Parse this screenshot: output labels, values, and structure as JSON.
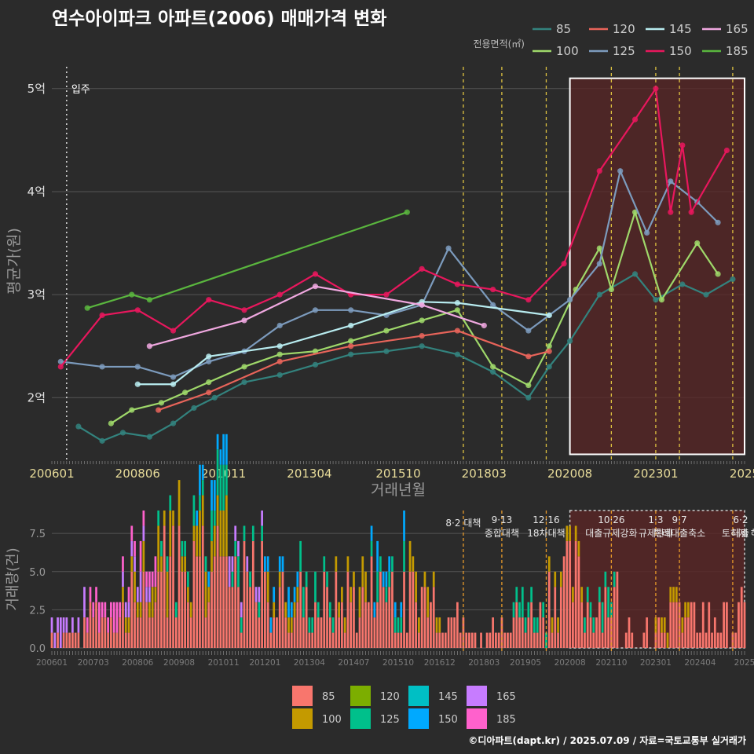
{
  "title": "연수아이파크 아파트(2006) 매매가격 변화",
  "footer": "©디아파트(dapt.kr) / 2025.07.09 / 자료=국토교통부 실거래가",
  "colors": {
    "background": "#2b2b2b",
    "grid": "#555555",
    "policy_line": "#e0c341",
    "highlight_fill": "#5a2626",
    "highlight_border": "#ffffff"
  },
  "chart_data": [
    {
      "type": "line",
      "title": "연수아이파크 아파트(2006) 매매가격 변화",
      "xlabel": "거래년월",
      "ylabel": "평균가(원)",
      "legend_title": "전용면적(㎡)",
      "legend_position": "top-right",
      "grid": true,
      "x_ticks": [
        "200601",
        "200806",
        "201011",
        "201304",
        "201510",
        "201803",
        "202008",
        "202301",
        "2025"
      ],
      "y_ticks": [
        "2억",
        "3억",
        "4억",
        "5억"
      ],
      "ylim": [
        1.4,
        5.25
      ],
      "xlim": [
        "2006-01",
        "2025-07"
      ],
      "annotation": "입주",
      "series": [
        {
          "name": "85",
          "color": "#33837e",
          "points": [
            [
              "2006-10",
              1.72
            ],
            [
              "2007-06",
              1.58
            ],
            [
              "2008-01",
              1.66
            ],
            [
              "2008-10",
              1.62
            ],
            [
              "2009-06",
              1.75
            ],
            [
              "2010-01",
              1.9
            ],
            [
              "2010-08",
              2.0
            ],
            [
              "2011-06",
              2.15
            ],
            [
              "2012-06",
              2.22
            ],
            [
              "2013-06",
              2.32
            ],
            [
              "2014-06",
              2.42
            ],
            [
              "2015-06",
              2.45
            ],
            [
              "2016-06",
              2.5
            ],
            [
              "2017-06",
              2.42
            ],
            [
              "2018-06",
              2.25
            ],
            [
              "2019-06",
              2.0
            ],
            [
              "2020-01",
              2.3
            ],
            [
              "2020-08",
              2.55
            ],
            [
              "2021-06",
              3.0
            ],
            [
              "2022-06",
              3.2
            ],
            [
              "2023-01",
              2.95
            ],
            [
              "2023-10",
              3.1
            ],
            [
              "2024-06",
              3.0
            ],
            [
              "2025-03",
              3.15
            ]
          ]
        },
        {
          "name": "100",
          "color": "#9fd86a",
          "points": [
            [
              "2007-09",
              1.75
            ],
            [
              "2008-04",
              1.88
            ],
            [
              "2009-02",
              1.95
            ],
            [
              "2009-10",
              2.05
            ],
            [
              "2010-06",
              2.15
            ],
            [
              "2011-06",
              2.3
            ],
            [
              "2012-06",
              2.42
            ],
            [
              "2013-06",
              2.45
            ],
            [
              "2014-06",
              2.55
            ],
            [
              "2015-06",
              2.65
            ],
            [
              "2016-06",
              2.75
            ],
            [
              "2017-06",
              2.85
            ],
            [
              "2018-06",
              2.3
            ],
            [
              "2019-06",
              2.12
            ],
            [
              "2020-01",
              2.5
            ],
            [
              "2020-10",
              3.05
            ],
            [
              "2021-06",
              3.45
            ],
            [
              "2021-10",
              3.05
            ],
            [
              "2022-06",
              3.8
            ],
            [
              "2023-03",
              2.95
            ],
            [
              "2024-03",
              3.5
            ],
            [
              "2024-10",
              3.2
            ]
          ]
        },
        {
          "name": "120",
          "color": "#e8645a",
          "points": [
            [
              "2009-01",
              1.88
            ],
            [
              "2010-06",
              2.05
            ],
            [
              "2012-06",
              2.35
            ],
            [
              "2014-06",
              2.5
            ],
            [
              "2016-06",
              2.6
            ],
            [
              "2017-06",
              2.65
            ],
            [
              "2019-06",
              2.4
            ],
            [
              "2020-01",
              2.45
            ]
          ]
        },
        {
          "name": "125",
          "color": "#7c9bbd",
          "points": [
            [
              "2006-04",
              2.35
            ],
            [
              "2007-06",
              2.3
            ],
            [
              "2008-06",
              2.3
            ],
            [
              "2009-06",
              2.2
            ],
            [
              "2010-06",
              2.35
            ],
            [
              "2011-06",
              2.45
            ],
            [
              "2012-06",
              2.7
            ],
            [
              "2013-06",
              2.85
            ],
            [
              "2014-06",
              2.85
            ],
            [
              "2015-06",
              2.8
            ],
            [
              "2016-06",
              2.9
            ],
            [
              "2017-03",
              3.45
            ],
            [
              "2018-06",
              2.9
            ],
            [
              "2019-06",
              2.65
            ],
            [
              "2020-01",
              2.8
            ],
            [
              "2020-08",
              2.95
            ],
            [
              "2021-06",
              3.3
            ],
            [
              "2022-01",
              4.2
            ],
            [
              "2022-10",
              3.6
            ],
            [
              "2023-06",
              4.1
            ],
            [
              "2024-03",
              3.9
            ],
            [
              "2024-10",
              3.7
            ]
          ]
        },
        {
          "name": "145",
          "color": "#b8ecf0",
          "points": [
            [
              "2008-06",
              2.13
            ],
            [
              "2009-06",
              2.13
            ],
            [
              "2010-06",
              2.4
            ],
            [
              "2012-06",
              2.5
            ],
            [
              "2014-06",
              2.7
            ],
            [
              "2016-06",
              2.93
            ],
            [
              "2017-06",
              2.92
            ],
            [
              "2020-01",
              2.8
            ]
          ]
        },
        {
          "name": "150",
          "color": "#e8175d",
          "points": [
            [
              "2006-04",
              2.3
            ],
            [
              "2007-06",
              2.8
            ],
            [
              "2008-06",
              2.85
            ],
            [
              "2009-06",
              2.65
            ],
            [
              "2010-06",
              2.95
            ],
            [
              "2011-06",
              2.85
            ],
            [
              "2012-06",
              3.0
            ],
            [
              "2013-06",
              3.2
            ],
            [
              "2014-06",
              3.0
            ],
            [
              "2015-06",
              3.0
            ],
            [
              "2016-06",
              3.25
            ],
            [
              "2017-06",
              3.1
            ],
            [
              "2018-06",
              3.05
            ],
            [
              "2019-06",
              2.95
            ],
            [
              "2020-06",
              3.3
            ],
            [
              "2021-06",
              4.2
            ],
            [
              "2022-06",
              4.7
            ],
            [
              "2023-01",
              5.0
            ],
            [
              "2023-06",
              3.8
            ],
            [
              "2023-10",
              4.45
            ],
            [
              "2024-01",
              3.8
            ],
            [
              "2025-01",
              4.4
            ]
          ]
        },
        {
          "name": "165",
          "color": "#f0a8e0",
          "points": [
            [
              "2008-10",
              2.5
            ],
            [
              "2011-06",
              2.75
            ],
            [
              "2013-06",
              3.08
            ],
            [
              "2016-06",
              2.9
            ],
            [
              "2018-03",
              2.7
            ]
          ]
        },
        {
          "name": "185",
          "color": "#5ab63e",
          "points": [
            [
              "2007-01",
              2.87
            ],
            [
              "2008-04",
              3.0
            ],
            [
              "2008-10",
              2.95
            ],
            [
              "2016-01",
              3.8
            ]
          ]
        }
      ],
      "policy_events": [
        "2017-08",
        "2018-09",
        "2019-12",
        "2021-10",
        "2023-01",
        "2023-09",
        "2025-03"
      ],
      "highlight_period": [
        "2020-08",
        "2025-07"
      ]
    },
    {
      "type": "bar",
      "xlabel": "",
      "ylabel": "거래량(건)",
      "y_ticks": [
        "0.0",
        "2.5",
        "5.0",
        "7.5"
      ],
      "ylim": [
        0,
        9
      ],
      "x_ticks": [
        "200601",
        "200703",
        "200806",
        "200908",
        "201011",
        "201201",
        "201304",
        "201407",
        "201510",
        "201612",
        "201803",
        "201905",
        "202008",
        "202110",
        "202301",
        "202404",
        "2025"
      ],
      "legend_position": "bottom",
      "legend_entries": [
        "85",
        "100",
        "120",
        "125",
        "145",
        "150",
        "165",
        "185"
      ],
      "legend_colors": [
        "#f8766d",
        "#c49a00",
        "#7cae00",
        "#00c08b",
        "#00bfc4",
        "#00a9ff",
        "#c77cff",
        "#ff61cc"
      ],
      "annotations": [
        {
          "date": "2017-08",
          "lines": [
            "8·2 대책"
          ]
        },
        {
          "date": "2018-09",
          "lines": [
            "9·13",
            "종합대책"
          ]
        },
        {
          "date": "2019-12",
          "lines": [
            "12·16",
            "18차대책"
          ]
        },
        {
          "date": "2021-10",
          "lines": [
            "10·26",
            "대출규제강화"
          ]
        },
        {
          "date": "2023-01",
          "lines": [
            "1·3",
            "규제완화"
          ]
        },
        {
          "date": "2023-09",
          "lines": [
            "9·7",
            "특례대출축소"
          ]
        },
        {
          "date": "2025-03",
          "lines": [
            "6·2",
            "대출"
          ]
        },
        {
          "date": "2025-03",
          "lines": [
            "",
            "토허제 해"
          ]
        }
      ],
      "series": [
        {
          "name": "85",
          "values_by_year": {
            "2006": 1,
            "2007": 2,
            "2008": 3,
            "2009": 5,
            "2010": 6,
            "2011": 4,
            "2012": 3,
            "2013": 3,
            "2014": 3,
            "2015": 4,
            "2016": 3,
            "2017": 2,
            "2018": 1,
            "2019": 2,
            "2020": 4,
            "2021": 3,
            "2022": 1,
            "2023": 2,
            "2024": 2,
            "2025": 2
          }
        },
        {
          "name": "100",
          "values_by_year": {
            "2008": 1,
            "2009": 2,
            "2010": 2,
            "2012": 1,
            "2014": 1,
            "2016": 1,
            "2020": 1,
            "2023": 1
          }
        },
        {
          "name": "125",
          "values_by_year": {
            "2009": 1,
            "2010": 2,
            "2011": 1,
            "2013": 1,
            "2015": 1,
            "2019": 1,
            "2021": 1
          }
        },
        {
          "name": "150",
          "values_by_year": {
            "2010": 1,
            "2012": 1,
            "2015": 1
          }
        },
        {
          "name": "165",
          "values_by_year": {
            "2006": 1,
            "2008": 1,
            "2011": 1
          }
        },
        {
          "name": "185",
          "values_by_year": {
            "2007": 1,
            "2008": 1
          }
        }
      ],
      "highlight_period": [
        "2020-08",
        "2025-07"
      ]
    }
  ]
}
